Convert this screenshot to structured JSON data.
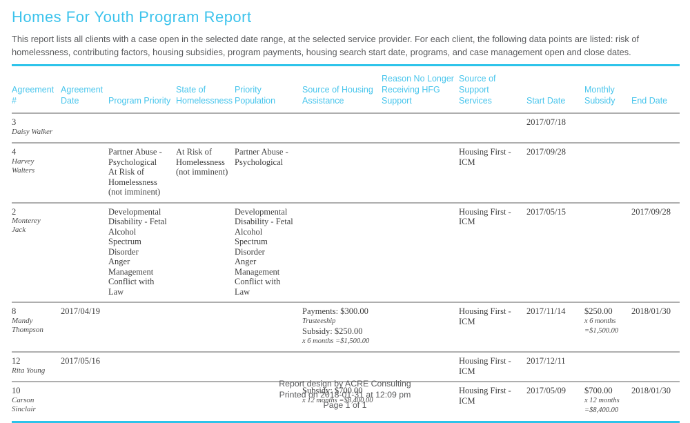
{
  "report": {
    "title": "Homes For Youth Program Report",
    "description": "This report lists all clients with a case open in the selected date range, at the selected service provider. For each client, the following data points are listed: risk of homelessness, contributing factors, housing subsidies, program payments, housing search start date, programs, and case management open and close dates.",
    "colors": {
      "accent_cyan": "#3cc3ec",
      "rule_cyan": "#2cc3ea",
      "row_separator_gray": "#aeaeae",
      "body_text": "#3d3d3d",
      "muted_text": "#58595b"
    },
    "footer": {
      "credit": "Report design by ACRE Consulting",
      "printed": "Printed on 2018-01-31 at 12:09 pm",
      "page": "Page 1 of 1"
    }
  },
  "table": {
    "columns": [
      {
        "key": "agreement_number",
        "label": "Agreement #"
      },
      {
        "key": "agreement_date",
        "label": "Agreement Date"
      },
      {
        "key": "program_priority",
        "label": "Program Priority"
      },
      {
        "key": "state_of_homelessness",
        "label": "State of Homelessness"
      },
      {
        "key": "priority_population",
        "label": "Priority Population"
      },
      {
        "key": "housing_assistance",
        "label": "Source of Housing Assistance"
      },
      {
        "key": "reason_no_longer",
        "label": "Reason No Longer Receiving HFG Support"
      },
      {
        "key": "support_services",
        "label": "Source of Support Services"
      },
      {
        "key": "start_date",
        "label": "Start Date"
      },
      {
        "key": "monthly_subsidy",
        "label": "Monthly Subsidy"
      },
      {
        "key": "end_date",
        "label": "End Date"
      }
    ],
    "rows": [
      {
        "agreement_number": "3",
        "client_name": "Daisy Walker",
        "agreement_date": "",
        "program_priority": [],
        "state_of_homelessness": "",
        "priority_population": [],
        "housing_assistance": [],
        "reason_no_longer": "",
        "support_services": "",
        "start_date": "2017/07/18",
        "monthly_subsidy": [],
        "end_date": ""
      },
      {
        "agreement_number": "4",
        "client_name": "Harvey Walters",
        "agreement_date": "",
        "program_priority": [
          {
            "text": "Partner Abuse - Psychological"
          },
          {
            "text": "At Risk of Homelessness (not imminent)"
          }
        ],
        "state_of_homelessness": "At Risk of Homelessness (not imminent)",
        "priority_population": [
          {
            "text": "Partner Abuse - Psychological"
          }
        ],
        "housing_assistance": [],
        "reason_no_longer": "",
        "support_services": "Housing First - ICM",
        "start_date": "2017/09/28",
        "monthly_subsidy": [],
        "end_date": ""
      },
      {
        "agreement_number": "2",
        "client_name": "Monterey Jack",
        "agreement_date": "",
        "program_priority": [
          {
            "text": "Developmental Disability - Fetal Alcohol Spectrum Disorder"
          },
          {
            "text": "Anger Management"
          },
          {
            "text": "Conflict with Law"
          }
        ],
        "state_of_homelessness": "",
        "priority_population": [
          {
            "text": "Developmental Disability - Fetal Alcohol Spectrum Disorder"
          },
          {
            "text": "Anger Management"
          },
          {
            "text": "Conflict with Law"
          }
        ],
        "housing_assistance": [],
        "reason_no_longer": "",
        "support_services": "Housing First - ICM",
        "start_date": "2017/05/15",
        "monthly_subsidy": [],
        "end_date": "2017/09/28"
      },
      {
        "agreement_number": "8",
        "client_name": "Mandy Thompson",
        "agreement_date": "2017/04/19",
        "program_priority": [],
        "state_of_homelessness": "",
        "priority_population": [],
        "housing_assistance": [
          {
            "text": "Payments: $300.00"
          },
          {
            "text": "Trusteeship",
            "em": true
          },
          {
            "text": "Subsidy: $250.00"
          },
          {
            "text": "x 6 months =$1,500.00",
            "em": true
          }
        ],
        "reason_no_longer": "",
        "support_services": "Housing First - ICM",
        "start_date": "2017/11/14",
        "monthly_subsidy": [
          {
            "text": "$250.00"
          },
          {
            "text": "x 6 months",
            "em": true
          },
          {
            "text": "=$1,500.00",
            "em": true
          }
        ],
        "end_date": "2018/01/30"
      },
      {
        "agreement_number": "12",
        "client_name": "Rita Young",
        "agreement_date": "2017/05/16",
        "program_priority": [],
        "state_of_homelessness": "",
        "priority_population": [],
        "housing_assistance": [],
        "reason_no_longer": "",
        "support_services": "Housing First - ICM",
        "start_date": "2017/12/11",
        "monthly_subsidy": [],
        "end_date": ""
      },
      {
        "agreement_number": "10",
        "client_name": "Carson Sinclair",
        "agreement_date": "",
        "program_priority": [],
        "state_of_homelessness": "",
        "priority_population": [],
        "housing_assistance": [
          {
            "text": "Subsidy: $700.00"
          },
          {
            "text": "x 12 months =$8,400.00",
            "em": true
          }
        ],
        "reason_no_longer": "",
        "support_services": "Housing First - ICM",
        "start_date": "2017/05/09",
        "monthly_subsidy": [
          {
            "text": "$700.00"
          },
          {
            "text": "x 12 months",
            "em": true
          },
          {
            "text": "=$8,400.00",
            "em": true
          }
        ],
        "end_date": "2018/01/30"
      }
    ]
  }
}
